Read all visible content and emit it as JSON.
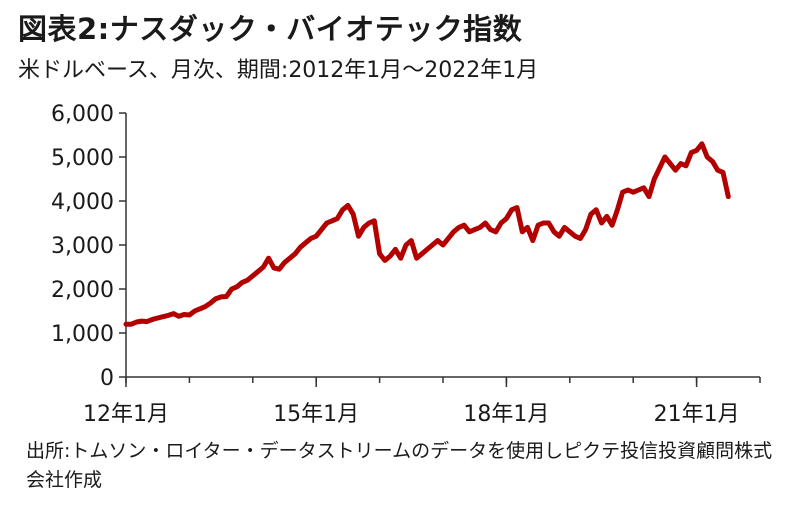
{
  "header": {
    "title": "図表2:ナスダック・バイオテック指数",
    "subtitle": "米ドルベース、月次、期間:2012年1月〜2022年1月"
  },
  "footer": {
    "source": "出所:トムソン・ロイター・データストリームのデータを使用しピクテ投信投資顧問株式会社作成"
  },
  "colors": {
    "series": "#b30000",
    "axis": "#333333"
  },
  "chart_data": {
    "type": "line",
    "title": "図表2:ナスダック・バイオテック指数",
    "xlabel": "",
    "ylabel": "",
    "ylim": [
      0,
      6000
    ],
    "yticks": [
      0,
      1000,
      2000,
      3000,
      4000,
      5000,
      6000
    ],
    "ytick_labels": [
      "0",
      "1,000",
      "2,000",
      "3,000",
      "4,000",
      "5,000",
      "6,000"
    ],
    "xticks": [
      0,
      36,
      72,
      108
    ],
    "xtick_labels": [
      "12年1月",
      "15年1月",
      "18年1月",
      "21年1月"
    ],
    "xlim": [
      0,
      120
    ],
    "grid": false,
    "legend": "none",
    "series": [
      {
        "values": [
          1200,
          1200,
          1250,
          1270,
          1260,
          1310,
          1340,
          1370,
          1400,
          1440,
          1380,
          1420,
          1410,
          1500,
          1550,
          1600,
          1680,
          1780,
          1820,
          1830,
          2000,
          2050,
          2150,
          2200,
          2300,
          2400,
          2500,
          2700,
          2480,
          2450,
          2600,
          2700,
          2800,
          2950,
          3050,
          3150,
          3200,
          3350,
          3500,
          3550,
          3600,
          3800,
          3900,
          3700,
          3200,
          3400,
          3500,
          3550,
          2800,
          2650,
          2750,
          2900,
          2700,
          3000,
          3100,
          2700,
          2800,
          2900,
          3000,
          3100,
          3000,
          3150,
          3300,
          3400,
          3450,
          3300,
          3350,
          3400,
          3500,
          3350,
          3300,
          3500,
          3600,
          3800,
          3850,
          3300,
          3400,
          3100,
          3450,
          3500,
          3500,
          3300,
          3200,
          3400,
          3300,
          3200,
          3150,
          3350,
          3700,
          3800,
          3500,
          3650,
          3450,
          3800,
          4200,
          4250,
          4200,
          4250,
          4300,
          4100,
          4500,
          4750,
          5000,
          4850,
          4700,
          4850,
          4800,
          5100,
          5150,
          5300,
          5000,
          4900,
          4700,
          4650,
          4100
        ]
      }
    ]
  }
}
